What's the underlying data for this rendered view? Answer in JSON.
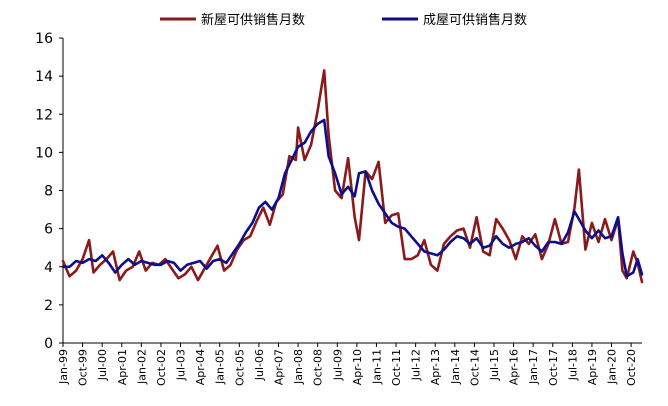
{
  "chart_data": {
    "type": "line",
    "title": "",
    "xlabel": "",
    "ylabel": "",
    "ylim": [
      0,
      16
    ],
    "yticks": [
      0,
      2,
      4,
      6,
      8,
      10,
      12,
      14,
      16
    ],
    "grid": false,
    "legend_position": "top",
    "x_tick_labels": [
      "Jan-99",
      "Oct-99",
      "Jul-00",
      "Apr-01",
      "Jan-02",
      "Oct-02",
      "Jul-03",
      "Apr-04",
      "Jan-05",
      "Oct-05",
      "Jul-06",
      "Apr-07",
      "Jan-08",
      "Oct-08",
      "Jul-09",
      "Apr-10",
      "Jan-11",
      "Oct-11",
      "Jul-12",
      "Apr-13",
      "Jan-14",
      "Oct-14",
      "Jul-15",
      "Apr-16",
      "Jan-17",
      "Oct-17",
      "Jul-18",
      "Apr-19",
      "Jan-20",
      "Oct-20"
    ],
    "x_range": [
      "1999-01",
      "2021-03"
    ],
    "series": [
      {
        "name": "新屋可供销售月数",
        "color": "#8B1A1A",
        "points": [
          [
            "1999-01",
            4.3
          ],
          [
            "1999-04",
            3.5
          ],
          [
            "1999-07",
            3.8
          ],
          [
            "1999-10",
            4.4
          ],
          [
            "2000-01",
            5.4
          ],
          [
            "2000-03",
            3.7
          ],
          [
            "2000-06",
            4.1
          ],
          [
            "2000-09",
            4.4
          ],
          [
            "2000-12",
            4.8
          ],
          [
            "2001-03",
            3.3
          ],
          [
            "2001-06",
            3.8
          ],
          [
            "2001-09",
            4.0
          ],
          [
            "2001-12",
            4.8
          ],
          [
            "2002-03",
            3.8
          ],
          [
            "2002-06",
            4.2
          ],
          [
            "2002-09",
            4.1
          ],
          [
            "2002-12",
            4.4
          ],
          [
            "2003-03",
            3.9
          ],
          [
            "2003-06",
            3.4
          ],
          [
            "2003-09",
            3.6
          ],
          [
            "2003-12",
            4.0
          ],
          [
            "2004-03",
            3.3
          ],
          [
            "2004-06",
            3.9
          ],
          [
            "2004-09",
            4.5
          ],
          [
            "2004-12",
            5.1
          ],
          [
            "2005-03",
            3.8
          ],
          [
            "2005-06",
            4.1
          ],
          [
            "2005-09",
            4.9
          ],
          [
            "2005-12",
            5.4
          ],
          [
            "2006-03",
            5.6
          ],
          [
            "2006-06",
            6.4
          ],
          [
            "2006-09",
            7.1
          ],
          [
            "2006-12",
            6.2
          ],
          [
            "2007-03",
            7.4
          ],
          [
            "2007-06",
            7.8
          ],
          [
            "2007-09",
            9.8
          ],
          [
            "2007-12",
            9.6
          ],
          [
            "2008-01",
            11.3
          ],
          [
            "2008-04",
            9.6
          ],
          [
            "2008-07",
            10.4
          ],
          [
            "2008-10",
            12.2
          ],
          [
            "2009-01",
            14.3
          ],
          [
            "2009-03",
            10.9
          ],
          [
            "2009-06",
            8.0
          ],
          [
            "2009-09",
            7.6
          ],
          [
            "2009-12",
            9.7
          ],
          [
            "2010-03",
            6.6
          ],
          [
            "2010-05",
            5.4
          ],
          [
            "2010-08",
            9.0
          ],
          [
            "2010-11",
            8.6
          ],
          [
            "2011-02",
            9.5
          ],
          [
            "2011-05",
            6.3
          ],
          [
            "2011-08",
            6.7
          ],
          [
            "2011-11",
            6.8
          ],
          [
            "2012-02",
            4.4
          ],
          [
            "2012-05",
            4.4
          ],
          [
            "2012-08",
            4.6
          ],
          [
            "2012-11",
            5.4
          ],
          [
            "2013-02",
            4.1
          ],
          [
            "2013-05",
            3.8
          ],
          [
            "2013-08",
            5.2
          ],
          [
            "2013-11",
            5.6
          ],
          [
            "2014-02",
            5.9
          ],
          [
            "2014-05",
            6.0
          ],
          [
            "2014-08",
            5.0
          ],
          [
            "2014-11",
            6.6
          ],
          [
            "2015-02",
            4.8
          ],
          [
            "2015-05",
            4.6
          ],
          [
            "2015-08",
            6.5
          ],
          [
            "2015-11",
            6.0
          ],
          [
            "2016-02",
            5.4
          ],
          [
            "2016-05",
            4.4
          ],
          [
            "2016-08",
            5.6
          ],
          [
            "2016-11",
            5.2
          ],
          [
            "2017-02",
            5.7
          ],
          [
            "2017-05",
            4.4
          ],
          [
            "2017-08",
            5.2
          ],
          [
            "2017-11",
            6.5
          ],
          [
            "2018-02",
            5.2
          ],
          [
            "2018-05",
            5.3
          ],
          [
            "2018-08",
            7.1
          ],
          [
            "2018-10",
            9.1
          ],
          [
            "2019-01",
            4.9
          ],
          [
            "2019-04",
            6.3
          ],
          [
            "2019-07",
            5.3
          ],
          [
            "2019-10",
            6.5
          ],
          [
            "2020-01",
            5.4
          ],
          [
            "2020-04",
            6.5
          ],
          [
            "2020-06",
            3.8
          ],
          [
            "2020-08",
            3.4
          ],
          [
            "2020-11",
            4.8
          ],
          [
            "2021-01",
            4.2
          ],
          [
            "2021-03",
            3.2
          ]
        ]
      },
      {
        "name": "成屋可供销售月数",
        "color": "#0E0E8C",
        "points": [
          [
            "1999-01",
            4.0
          ],
          [
            "1999-04",
            4.0
          ],
          [
            "1999-07",
            4.3
          ],
          [
            "1999-10",
            4.2
          ],
          [
            "2000-01",
            4.4
          ],
          [
            "2000-04",
            4.3
          ],
          [
            "2000-07",
            4.6
          ],
          [
            "2000-10",
            4.2
          ],
          [
            "2001-01",
            3.7
          ],
          [
            "2001-04",
            4.1
          ],
          [
            "2001-07",
            4.4
          ],
          [
            "2001-10",
            4.1
          ],
          [
            "2002-01",
            4.3
          ],
          [
            "2002-04",
            4.2
          ],
          [
            "2002-07",
            4.1
          ],
          [
            "2002-10",
            4.1
          ],
          [
            "2003-01",
            4.3
          ],
          [
            "2003-04",
            4.2
          ],
          [
            "2003-07",
            3.8
          ],
          [
            "2003-10",
            4.1
          ],
          [
            "2004-01",
            4.2
          ],
          [
            "2004-04",
            4.3
          ],
          [
            "2004-07",
            3.9
          ],
          [
            "2004-10",
            4.3
          ],
          [
            "2005-01",
            4.4
          ],
          [
            "2005-04",
            4.2
          ],
          [
            "2005-07",
            4.7
          ],
          [
            "2005-10",
            5.2
          ],
          [
            "2006-01",
            5.8
          ],
          [
            "2006-04",
            6.3
          ],
          [
            "2006-07",
            7.1
          ],
          [
            "2006-10",
            7.4
          ],
          [
            "2007-01",
            7.0
          ],
          [
            "2007-04",
            7.6
          ],
          [
            "2007-07",
            8.9
          ],
          [
            "2007-10",
            9.6
          ],
          [
            "2008-01",
            10.3
          ],
          [
            "2008-04",
            10.5
          ],
          [
            "2008-07",
            11.1
          ],
          [
            "2008-10",
            11.5
          ],
          [
            "2009-01",
            11.7
          ],
          [
            "2009-03",
            9.8
          ],
          [
            "2009-06",
            8.9
          ],
          [
            "2009-09",
            7.8
          ],
          [
            "2009-12",
            8.2
          ],
          [
            "2010-03",
            7.7
          ],
          [
            "2010-05",
            8.9
          ],
          [
            "2010-08",
            9.0
          ],
          [
            "2010-11",
            8.0
          ],
          [
            "2011-02",
            7.3
          ],
          [
            "2011-05",
            6.8
          ],
          [
            "2011-08",
            6.3
          ],
          [
            "2011-11",
            6.1
          ],
          [
            "2012-02",
            6.0
          ],
          [
            "2012-05",
            5.6
          ],
          [
            "2012-08",
            5.2
          ],
          [
            "2012-11",
            4.8
          ],
          [
            "2013-02",
            4.7
          ],
          [
            "2013-05",
            4.6
          ],
          [
            "2013-08",
            4.9
          ],
          [
            "2013-11",
            5.3
          ],
          [
            "2014-02",
            5.6
          ],
          [
            "2014-05",
            5.5
          ],
          [
            "2014-08",
            5.2
          ],
          [
            "2014-11",
            5.5
          ],
          [
            "2015-02",
            5.0
          ],
          [
            "2015-05",
            5.1
          ],
          [
            "2015-08",
            5.6
          ],
          [
            "2015-11",
            5.2
          ],
          [
            "2016-02",
            5.0
          ],
          [
            "2016-05",
            5.2
          ],
          [
            "2016-08",
            5.3
          ],
          [
            "2016-11",
            5.5
          ],
          [
            "2017-02",
            5.1
          ],
          [
            "2017-05",
            4.8
          ],
          [
            "2017-08",
            5.3
          ],
          [
            "2017-11",
            5.3
          ],
          [
            "2018-02",
            5.2
          ],
          [
            "2018-05",
            5.8
          ],
          [
            "2018-08",
            6.9
          ],
          [
            "2018-10",
            6.5
          ],
          [
            "2019-01",
            5.9
          ],
          [
            "2019-04",
            5.5
          ],
          [
            "2019-07",
            5.9
          ],
          [
            "2019-10",
            5.5
          ],
          [
            "2020-01",
            5.6
          ],
          [
            "2020-04",
            6.6
          ],
          [
            "2020-06",
            4.7
          ],
          [
            "2020-08",
            3.5
          ],
          [
            "2020-11",
            3.7
          ],
          [
            "2021-01",
            4.4
          ],
          [
            "2021-03",
            3.6
          ]
        ]
      }
    ]
  }
}
